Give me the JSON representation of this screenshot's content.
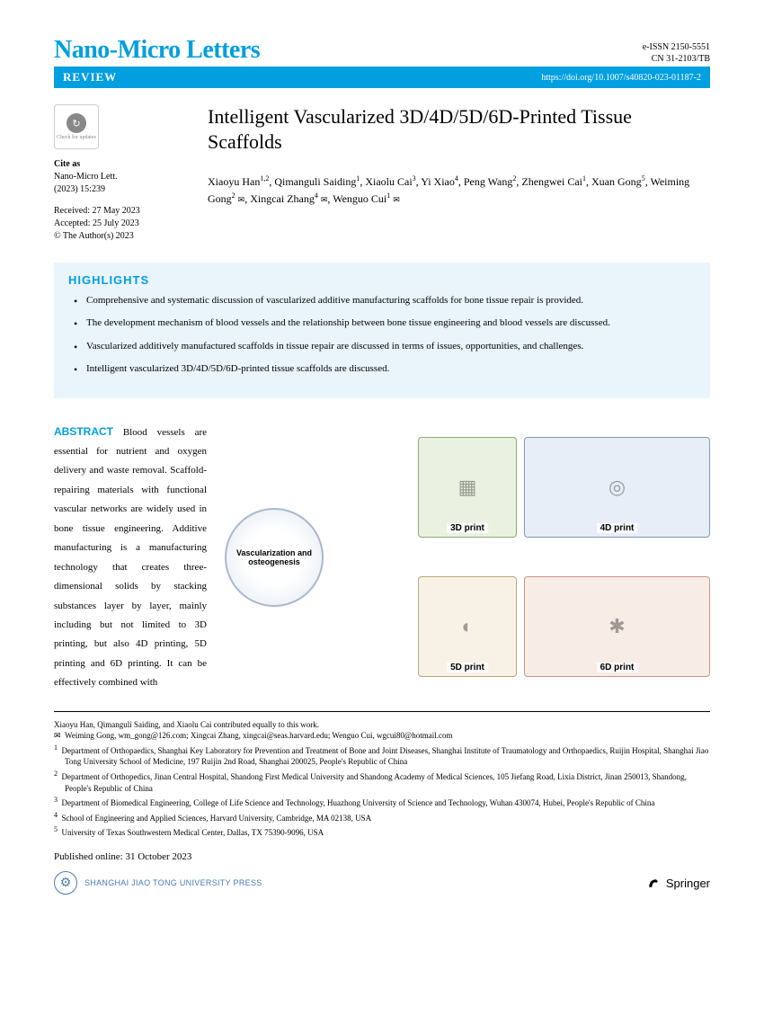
{
  "journal": {
    "name": "Nano-Micro Letters",
    "eissn": "e-ISSN 2150-5551",
    "cn": "CN 31-2103/TB"
  },
  "bar": {
    "section": "REVIEW",
    "doi": "https://doi.org/10.1007/s40820-023-01187-2"
  },
  "cite": {
    "label": "Cite as",
    "journal": "Nano-Micro Lett.",
    "ref": "(2023) 15:239",
    "received": "Received: 27 May 2023",
    "accepted": "Accepted: 25 July 2023",
    "copyright": "© The Author(s) 2023"
  },
  "badge": {
    "text": "Check for updates"
  },
  "article": {
    "title": "Intelligent Vascularized 3D/4D/5D/6D-Printed Tissue Scaffolds"
  },
  "authors_html": "Xiaoyu Han<span class='sup'>1,2</span>, Qimanguli Saiding<span class='sup'>1</span>, Xiaolu Cai<span class='sup'>3</span>, Yi Xiao<span class='sup'>4</span>, Peng Wang<span class='sup'>2</span>, Zhengwei Cai<span class='sup'>1</span>, Xuan Gong<span class='sup'>5</span>, Weiming Gong<span class='sup'>2</span> <span class='env'>✉</span>, Xingcai Zhang<span class='sup'>4</span> <span class='env'>✉</span>, Wenguo Cui<span class='sup'>1</span> <span class='env'>✉</span>",
  "highlights": {
    "title": "HIGHLIGHTS",
    "items": [
      "Comprehensive and systematic discussion of vascularized additive manufacturing scaffolds for bone tissue repair is provided.",
      "The development mechanism of blood vessels and the relationship between bone tissue engineering and blood vessels are discussed.",
      "Vascularized additively manufactured scaffolds in tissue repair are discussed in terms of issues, opportunities, and challenges.",
      "Intelligent vascularized 3D/4D/5D/6D-printed tissue scaffolds are discussed."
    ]
  },
  "abstract": {
    "label": "ABSTRACT",
    "text": " Blood vessels are essential for nutrient and oxygen delivery and waste removal. Scaffold-repairing materials with functional vascular networks are widely used in bone tissue engineering. Additive manufacturing is a manufacturing technology that creates three-dimensional solids by stacking substances layer by layer, mainly including but not limited to 3D printing, but also 4D printing, 5D printing and 6D printing. It can be effectively combined with"
  },
  "figure": {
    "panels": {
      "p3d": "3D print",
      "p4d": "4D print",
      "p5d": "5D print",
      "p6d": "6D print"
    },
    "center": "Vascularization and osteogenesis"
  },
  "footnotes": {
    "equal": "Xiaoyu Han, Qimanguli Saiding, and Xiaolu Cai contributed equally to this work.",
    "corresponding": "Weiming Gong, wm_gong@126.com; Xingcai Zhang, xingcai@seas.harvard.edu; Wenguo Cui, wgcui80@hotmail.com",
    "affils": [
      "Department of Orthopaedics, Shanghai Key Laboratory for Prevention and Treatment of Bone and Joint Diseases, Shanghai Institute of Traumatology and Orthopaedics, Ruijin Hospital, Shanghai Jiao Tong University School of Medicine, 197 Ruijin 2nd Road, Shanghai 200025, People's Republic of China",
      "Department of Orthopedics, Jinan Central Hospital, Shandong First Medical University and Shandong Academy of Medical Sciences, 105 Jiefang Road, Lixia District, Jinan 250013, Shandong, People's Republic of China",
      "Department of Biomedical Engineering, College of Life Science and Technology, Huazhong University of Science and Technology, Wuhan 430074, Hubei, People's Republic of China",
      "School of Engineering and Applied Sciences, Harvard University, Cambridge, MA 02138, USA",
      "University of Texas Southwestern Medical Center, Dallas, TX 75390-9096, USA"
    ]
  },
  "pub_date": "Published online: 31 October 2023",
  "footer": {
    "press": "SHANGHAI JIAO TONG UNIVERSITY PRESS",
    "springer": "Springer"
  },
  "colors": {
    "brand": "#009fdf",
    "highlights_bg": "#e9f4fb",
    "p3d_bg": "#e9f2e0",
    "p4d_bg": "#e8eef7",
    "p5d_bg": "#f8f2e6",
    "p6d_bg": "#f8ece6"
  }
}
